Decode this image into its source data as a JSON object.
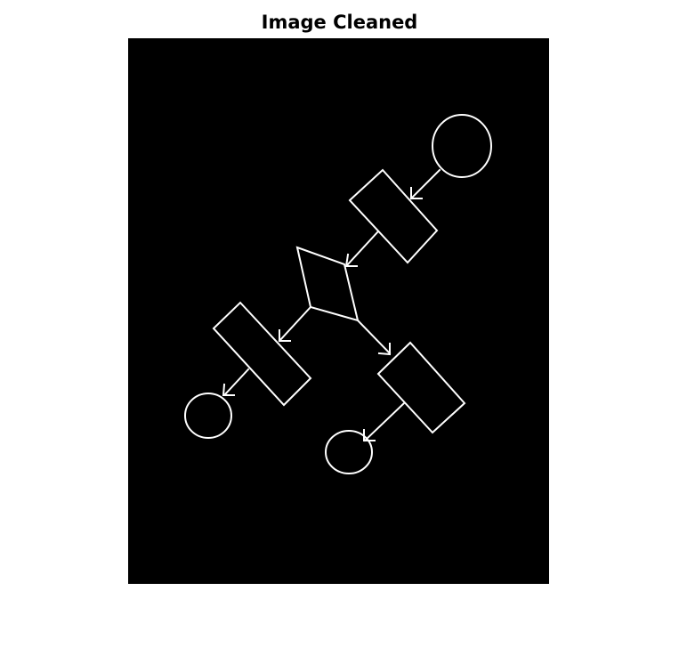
{
  "figure": {
    "title": "Image Cleaned",
    "background_color": "#000000",
    "stroke_color": "#ffffff"
  }
}
